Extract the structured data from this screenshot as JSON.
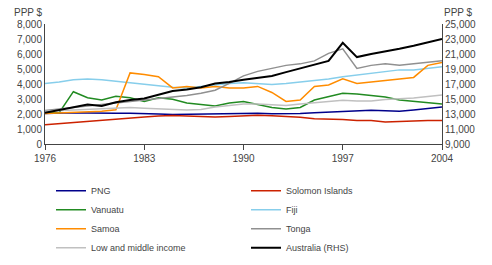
{
  "chart_data": {
    "type": "line",
    "ylabel": "PPP $",
    "y2label": "PPP $",
    "x": [
      1976,
      1977,
      1978,
      1979,
      1980,
      1981,
      1982,
      1983,
      1984,
      1985,
      1986,
      1987,
      1988,
      1989,
      1990,
      1991,
      1992,
      1993,
      1994,
      1995,
      1996,
      1997,
      1998,
      1999,
      2000,
      2001,
      2002,
      2003,
      2004
    ],
    "series": [
      {
        "name": "PNG",
        "color": "#00008B",
        "values": [
          2050,
          2080,
          2100,
          2080,
          2050,
          2060,
          2070,
          2060,
          2010,
          1980,
          2000,
          2010,
          2030,
          2060,
          2070,
          2060,
          2040,
          2020,
          2050,
          2100,
          2150,
          2200,
          2230,
          2260,
          2230,
          2200,
          2280,
          2380,
          2480
        ]
      },
      {
        "name": "Solomon Islands",
        "color": "#CC2200",
        "values": [
          1300,
          1380,
          1450,
          1550,
          1630,
          1700,
          1760,
          1820,
          1880,
          1920,
          1890,
          1850,
          1820,
          1850,
          1900,
          1940,
          1900,
          1850,
          1800,
          1700,
          1680,
          1650,
          1580,
          1580,
          1490,
          1530,
          1570,
          1580,
          1580
        ]
      },
      {
        "name": "Vanuatu",
        "color": "#228B22",
        "values": [
          2100,
          2100,
          3500,
          3100,
          2950,
          3200,
          3100,
          2850,
          3100,
          3000,
          2750,
          2650,
          2550,
          2750,
          2850,
          2650,
          2450,
          2350,
          2450,
          2950,
          3200,
          3400,
          3350,
          3250,
          3150,
          2950,
          2850,
          2750,
          2680
        ]
      },
      {
        "name": "Fiji",
        "color": "#87CEEB",
        "values": [
          4050,
          4150,
          4300,
          4350,
          4300,
          4200,
          4100,
          4000,
          3900,
          3800,
          3750,
          3850,
          3950,
          4050,
          4100,
          4050,
          3980,
          4050,
          4150,
          4250,
          4350,
          4500,
          4620,
          4720,
          4850,
          4950,
          4950,
          5050,
          5150
        ]
      },
      {
        "name": "Samoa",
        "color": "#FF8C00",
        "values": [
          2050,
          2080,
          2100,
          2150,
          2200,
          2300,
          4750,
          4650,
          4500,
          3750,
          3850,
          3750,
          3850,
          3750,
          3750,
          3850,
          3450,
          2850,
          2950,
          3850,
          3950,
          4350,
          4050,
          4150,
          4250,
          4350,
          4450,
          5250,
          5450
        ]
      },
      {
        "name": "Tonga",
        "color": "#909090",
        "values": [
          2250,
          2350,
          2450,
          2550,
          2650,
          2750,
          2850,
          2950,
          3050,
          3150,
          3250,
          3400,
          3600,
          4050,
          4550,
          4850,
          5050,
          5250,
          5350,
          5550,
          6050,
          6350,
          5050,
          5250,
          5350,
          5250,
          5350,
          5450,
          5550
        ]
      },
      {
        "name": "Low and middle income",
        "color": "#C0C0C0",
        "values": [
          2200,
          2250,
          2300,
          2350,
          2380,
          2420,
          2450,
          2400,
          2360,
          2310,
          2280,
          2320,
          2480,
          2580,
          2680,
          2680,
          2630,
          2580,
          2680,
          2780,
          2880,
          2930,
          2880,
          2880,
          2980,
          3030,
          3080,
          3180,
          3280
        ]
      },
      {
        "name": "Australia (RHS)",
        "color": "#000000",
        "axis": "y2",
        "values": [
          13200,
          13600,
          14000,
          14300,
          14100,
          14600,
          14900,
          15100,
          15600,
          16100,
          16300,
          16600,
          17100,
          17300,
          17600,
          17900,
          18100,
          18600,
          19100,
          19600,
          20100,
          22500,
          20600,
          21000,
          21300,
          21700,
          22100,
          22500,
          23000
        ]
      }
    ],
    "xlim": [
      1976,
      2004
    ],
    "xticks": [
      1976,
      1983,
      1990,
      1997,
      2004
    ],
    "ylim": [
      0,
      8000
    ],
    "yticks": [
      0,
      {
        "value": 1000,
        "label": "1,000"
      },
      {
        "value": 2000,
        "label": "2,000"
      },
      {
        "value": 3000,
        "label": "3,000"
      },
      {
        "value": 4000,
        "label": "4,000"
      },
      {
        "value": 5000,
        "label": "5,000"
      },
      {
        "value": 6000,
        "label": "6,000"
      },
      {
        "value": 7000,
        "label": "7,000"
      },
      {
        "value": 8000,
        "label": "8,000"
      }
    ],
    "y2lim": [
      9000,
      25000
    ],
    "y2ticks": [
      {
        "value": 9000,
        "label": "9,000"
      },
      {
        "value": 11000,
        "label": "11,000"
      },
      {
        "value": 13000,
        "label": "13,000"
      },
      {
        "value": 15000,
        "label": "15,000"
      },
      {
        "value": 17000,
        "label": "17,000"
      },
      {
        "value": 19000,
        "label": "19,000"
      },
      {
        "value": 21000,
        "label": "21,000"
      },
      {
        "value": 23000,
        "label": "23,000"
      },
      {
        "value": 25000,
        "label": "25,000"
      }
    ],
    "grid": false
  }
}
